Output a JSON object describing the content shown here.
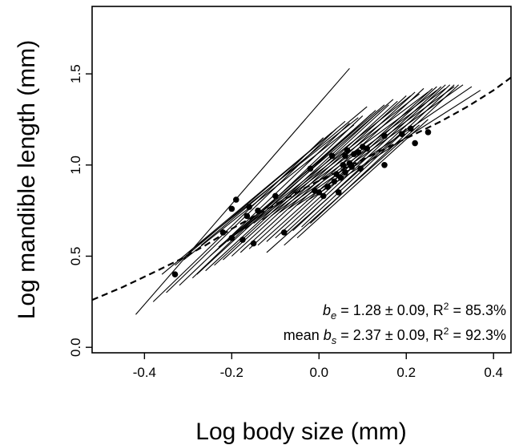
{
  "chart_data": {
    "type": "scatter",
    "title": "",
    "xlabel": "Log body size (mm)",
    "ylabel": "Log mandible length (mm)",
    "xlim": [
      -0.52,
      0.44
    ],
    "ylim": [
      -0.03,
      1.87
    ],
    "xticks": [
      -0.4,
      -0.2,
      0.0,
      0.2,
      0.4
    ],
    "xtick_labels": [
      "-0.4",
      "-0.2",
      "0.0",
      "0.2",
      "0.4"
    ],
    "yticks": [
      0.0,
      0.5,
      1.0,
      1.5
    ],
    "ytick_labels": [
      "0.0",
      "0.5",
      "1.0",
      "1.5"
    ],
    "grid": false,
    "legend": "none",
    "points": [
      {
        "x": -0.33,
        "y": 0.4
      },
      {
        "x": -0.22,
        "y": 0.63
      },
      {
        "x": -0.2,
        "y": 0.6
      },
      {
        "x": -0.2,
        "y": 0.76
      },
      {
        "x": -0.19,
        "y": 0.81
      },
      {
        "x": -0.175,
        "y": 0.59
      },
      {
        "x": -0.165,
        "y": 0.72
      },
      {
        "x": -0.16,
        "y": 0.77
      },
      {
        "x": -0.15,
        "y": 0.57
      },
      {
        "x": -0.14,
        "y": 0.75
      },
      {
        "x": -0.1,
        "y": 0.83
      },
      {
        "x": -0.08,
        "y": 0.63
      },
      {
        "x": -0.02,
        "y": 0.98
      },
      {
        "x": -0.01,
        "y": 0.86
      },
      {
        "x": 0.0,
        "y": 0.85
      },
      {
        "x": 0.01,
        "y": 0.83
      },
      {
        "x": 0.02,
        "y": 0.88
      },
      {
        "x": 0.03,
        "y": 1.05
      },
      {
        "x": 0.035,
        "y": 0.91
      },
      {
        "x": 0.04,
        "y": 0.95
      },
      {
        "x": 0.045,
        "y": 0.85
      },
      {
        "x": 0.05,
        "y": 0.93
      },
      {
        "x": 0.055,
        "y": 1.0
      },
      {
        "x": 0.06,
        "y": 1.05
      },
      {
        "x": 0.06,
        "y": 0.96
      },
      {
        "x": 0.065,
        "y": 1.08
      },
      {
        "x": 0.07,
        "y": 1.01
      },
      {
        "x": 0.075,
        "y": 0.99
      },
      {
        "x": 0.08,
        "y": 1.06
      },
      {
        "x": 0.09,
        "y": 1.07
      },
      {
        "x": 0.095,
        "y": 0.98
      },
      {
        "x": 0.1,
        "y": 1.1
      },
      {
        "x": 0.11,
        "y": 1.09
      },
      {
        "x": 0.15,
        "y": 1.16
      },
      {
        "x": 0.15,
        "y": 1.0
      },
      {
        "x": 0.19,
        "y": 1.17
      },
      {
        "x": 0.21,
        "y": 1.2
      },
      {
        "x": 0.22,
        "y": 1.12
      },
      {
        "x": 0.25,
        "y": 1.18
      }
    ],
    "individual_lines": [
      {
        "x": [
          -0.42,
          0.07
        ],
        "y": [
          0.18,
          1.53
        ]
      },
      {
        "x": [
          -0.38,
          0.01
        ],
        "y": [
          0.25,
          1.15
        ]
      },
      {
        "x": [
          -0.35,
          0.04
        ],
        "y": [
          0.3,
          1.2
        ]
      },
      {
        "x": [
          -0.32,
          0.07
        ],
        "y": [
          0.34,
          1.23
        ]
      },
      {
        "x": [
          -0.29,
          0.1
        ],
        "y": [
          0.38,
          1.27
        ]
      },
      {
        "x": [
          -0.28,
          0.12
        ],
        "y": [
          0.4,
          1.28
        ]
      },
      {
        "x": [
          -0.26,
          0.14
        ],
        "y": [
          0.42,
          1.3
        ]
      },
      {
        "x": [
          -0.24,
          0.16
        ],
        "y": [
          0.45,
          1.33
        ]
      },
      {
        "x": [
          -0.22,
          0.18
        ],
        "y": [
          0.48,
          1.35
        ]
      },
      {
        "x": [
          -0.2,
          0.2
        ],
        "y": [
          0.5,
          1.38
        ]
      },
      {
        "x": [
          -0.18,
          0.22
        ],
        "y": [
          0.52,
          1.4
        ]
      },
      {
        "x": [
          -0.16,
          0.24
        ],
        "y": [
          0.54,
          1.42
        ]
      },
      {
        "x": [
          -0.14,
          0.26
        ],
        "y": [
          0.56,
          1.42
        ]
      },
      {
        "x": [
          -0.12,
          0.27
        ],
        "y": [
          0.58,
          1.43
        ]
      },
      {
        "x": [
          -0.1,
          0.28
        ],
        "y": [
          0.6,
          1.43
        ]
      },
      {
        "x": [
          -0.08,
          0.29
        ],
        "y": [
          0.62,
          1.44
        ]
      },
      {
        "x": [
          -0.06,
          0.3
        ],
        "y": [
          0.64,
          1.44
        ]
      },
      {
        "x": [
          -0.04,
          0.31
        ],
        "y": [
          0.66,
          1.44
        ]
      },
      {
        "x": [
          -0.02,
          0.32
        ],
        "y": [
          0.68,
          1.44
        ]
      },
      {
        "x": [
          -0.25,
          0.13
        ],
        "y": [
          0.5,
          1.3
        ]
      },
      {
        "x": [
          -0.23,
          0.15
        ],
        "y": [
          0.55,
          1.33
        ]
      },
      {
        "x": [
          -0.21,
          0.17
        ],
        "y": [
          0.58,
          1.36
        ]
      },
      {
        "x": [
          -0.27,
          0.11
        ],
        "y": [
          0.56,
          1.32
        ]
      },
      {
        "x": [
          -0.3,
          0.09
        ],
        "y": [
          0.52,
          1.26
        ]
      },
      {
        "x": [
          -0.19,
          0.21
        ],
        "y": [
          0.62,
          1.38
        ]
      },
      {
        "x": [
          -0.17,
          0.23
        ],
        "y": [
          0.65,
          1.39
        ]
      },
      {
        "x": [
          -0.15,
          0.25
        ],
        "y": [
          0.68,
          1.4
        ]
      },
      {
        "x": [
          -0.13,
          0.27
        ],
        "y": [
          0.7,
          1.41
        ]
      },
      {
        "x": [
          -0.11,
          0.29
        ],
        "y": [
          0.72,
          1.42
        ]
      },
      {
        "x": [
          -0.09,
          0.31
        ],
        "y": [
          0.74,
          1.43
        ]
      },
      {
        "x": [
          -0.07,
          0.33
        ],
        "y": [
          0.76,
          1.44
        ]
      },
      {
        "x": [
          -0.05,
          0.35
        ],
        "y": [
          0.78,
          1.43
        ]
      },
      {
        "x": [
          -0.03,
          0.37
        ],
        "y": [
          0.8,
          1.41
        ]
      },
      {
        "x": [
          -0.33,
          0.06
        ],
        "y": [
          0.45,
          1.24
        ]
      },
      {
        "x": [
          -0.36,
          0.03
        ],
        "y": [
          0.4,
          1.18
        ]
      },
      {
        "x": [
          -0.31,
          0.08
        ],
        "y": [
          0.48,
          1.22
        ]
      },
      {
        "x": [
          -0.12,
          0.2
        ],
        "y": [
          0.52,
          1.2
        ]
      },
      {
        "x": [
          -0.08,
          0.23
        ],
        "y": [
          0.56,
          1.22
        ]
      },
      {
        "x": [
          -0.05,
          0.25
        ],
        "y": [
          0.6,
          1.25
        ]
      }
    ],
    "fitted_curve": {
      "style": "dashed",
      "x": [
        -0.52,
        -0.45,
        -0.38,
        -0.32,
        -0.26,
        -0.2,
        -0.14,
        -0.08,
        -0.02,
        0.04,
        0.1,
        0.16,
        0.22,
        0.28,
        0.34,
        0.4,
        0.44
      ],
      "y": [
        0.26,
        0.33,
        0.41,
        0.48,
        0.56,
        0.65,
        0.73,
        0.81,
        0.89,
        0.96,
        1.03,
        1.1,
        1.17,
        1.24,
        1.32,
        1.41,
        1.48
      ]
    },
    "annotations": [
      {
        "symbol": "b",
        "subscript": "e",
        "prefix": "",
        "text": " = 1.28 ± 0.09, R",
        "sup": "2",
        "suffix": " = 85.3%"
      },
      {
        "symbol": "b",
        "subscript": "s",
        "prefix": "mean ",
        "text": " = 2.37 ± 0.09, R",
        "sup": "2",
        "suffix": " = 92.3%"
      }
    ]
  }
}
